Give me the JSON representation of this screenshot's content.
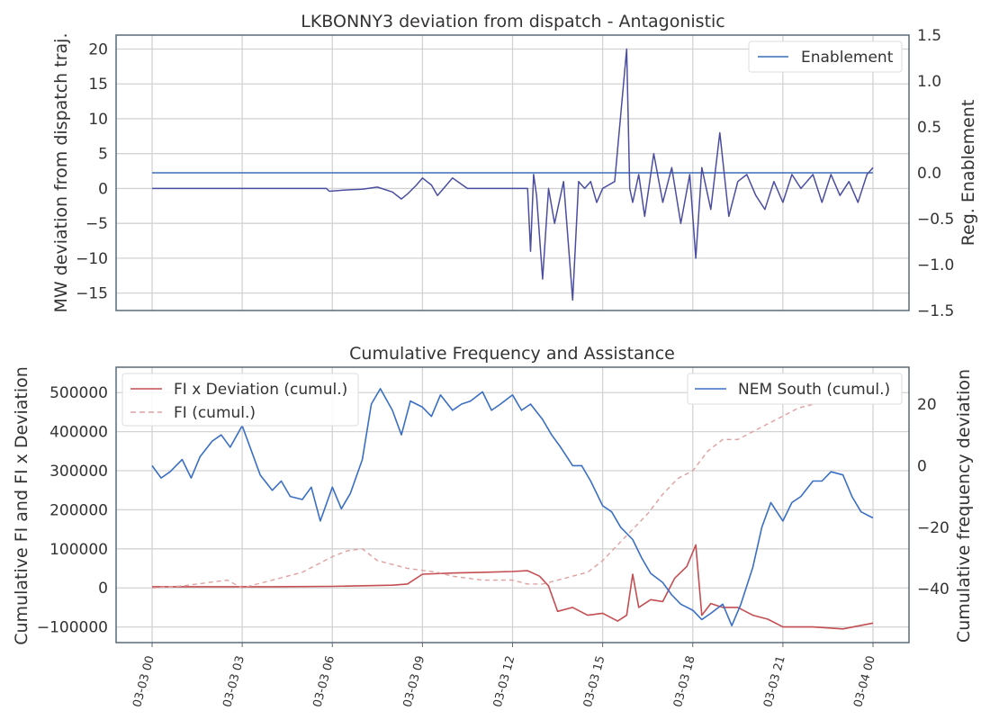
{
  "chart_data": [
    {
      "type": "line",
      "title": "LKBONNY3 deviation from dispatch - Antagonistic",
      "ylabel": "MW deviation from dispatch traj.",
      "y2label": "Reg. Enablement",
      "ylim": [
        -17.5,
        22
      ],
      "y2lim": [
        -1.5,
        1.5
      ],
      "yticks": [
        -15,
        -10,
        -5,
        0,
        5,
        10,
        15,
        20
      ],
      "y2ticks": [
        -1.5,
        -1.0,
        -0.5,
        0.0,
        0.5,
        1.0,
        1.5
      ],
      "ytick_labels": [
        "−15",
        "−10",
        "−5",
        "0",
        "5",
        "10",
        "15",
        "20"
      ],
      "y2tick_labels": [
        "−1.5",
        "−1.0",
        "−0.5",
        "0.0",
        "0.5",
        "1.0",
        "1.5"
      ],
      "legend": {
        "position": "top-right",
        "entries": [
          "Enablement"
        ]
      },
      "grid": true,
      "colors": {
        "deviation": "#4b4ea0",
        "enablement": "#3a6fb5"
      },
      "series": [
        {
          "name": "Enablement",
          "axis": "right",
          "x_hours": [
            0,
            24
          ],
          "values": [
            0.0,
            0.0
          ]
        },
        {
          "axis": "left",
          "x_hours": [
            0,
            1,
            2,
            3,
            4,
            5,
            5.8,
            5.9,
            6.5,
            7,
            7.5,
            8,
            8.3,
            8.5,
            8.8,
            9,
            9.3,
            9.5,
            10,
            10.5,
            10.8,
            11,
            11.5,
            12,
            12.5,
            12.6,
            12.7,
            12.8,
            13,
            13.2,
            13.4,
            13.7,
            14,
            14.2,
            14.4,
            14.6,
            14.8,
            15,
            15.4,
            15.8,
            15.9,
            16.0,
            16.2,
            16.4,
            16.7,
            17,
            17.3,
            17.6,
            17.9,
            18.1,
            18.3,
            18.6,
            18.9,
            19.2,
            19.5,
            19.8,
            20.1,
            20.4,
            20.7,
            21,
            21.3,
            21.6,
            22,
            22.3,
            22.6,
            22.9,
            23.2,
            23.5,
            23.8,
            24
          ],
          "values": [
            0,
            0,
            0,
            0,
            0,
            0,
            0,
            -0.4,
            -0.2,
            -0.1,
            0.2,
            -0.5,
            -1.5,
            -0.8,
            0.5,
            1.5,
            0.5,
            -1.0,
            1.5,
            0,
            0,
            0,
            0,
            0,
            0,
            -9,
            2,
            -1,
            -13,
            0,
            -5,
            1,
            -16,
            1,
            0,
            1,
            -2,
            0,
            1,
            20,
            0,
            -2,
            2,
            -4,
            5,
            -2,
            3,
            -5,
            2,
            -10,
            3,
            -3,
            8,
            -4,
            1,
            2,
            -1,
            -3,
            1,
            -2,
            2,
            0,
            2,
            -2,
            2,
            -1,
            1,
            -2,
            2,
            3
          ]
        }
      ]
    },
    {
      "type": "line",
      "title": "Cumulative Frequency and Assistance",
      "ylabel": "Cumulative FI and FI x Deviation",
      "y2label": "Cumulative frequency deviation",
      "ylim": [
        -140000,
        565000
      ],
      "y2lim": [
        -57.5,
        32
      ],
      "yticks": [
        -100000,
        0,
        100000,
        200000,
        300000,
        400000,
        500000
      ],
      "y2ticks": [
        -40,
        -20,
        0,
        20
      ],
      "ytick_labels": [
        "−100000",
        "0",
        "100000",
        "200000",
        "300000",
        "400000",
        "500000"
      ],
      "y2tick_labels": [
        "−40",
        "−20",
        "0",
        "20"
      ],
      "xticks_hours": [
        0,
        3,
        6,
        9,
        12,
        15,
        18,
        21,
        24
      ],
      "xtick_labels": [
        "03-03 00",
        "03-03 03",
        "03-03 06",
        "03-03 09",
        "03-03 12",
        "03-03 15",
        "03-03 18",
        "03-03 21",
        "03-04 00"
      ],
      "legend": [
        {
          "position": "top-left",
          "entries": [
            "FI x Deviation (cumul.)",
            "FI (cumul.)"
          ]
        },
        {
          "position": "top-right",
          "entries": [
            "NEM South (cumul.)"
          ]
        }
      ],
      "grid": true,
      "colors": {
        "fi_dev": "#c44e52",
        "fi": "#e0a0a0",
        "nem_south": "#3a6fc4"
      },
      "series": [
        {
          "name": "FI x Deviation (cumul.)",
          "axis": "left",
          "x_hours": [
            0,
            2,
            4,
            6,
            8,
            8.5,
            9,
            10,
            11,
            12,
            12.5,
            12.9,
            13.2,
            13.5,
            14,
            14.5,
            15,
            15.5,
            15.8,
            16.0,
            16.2,
            16.6,
            17,
            17.4,
            17.8,
            18.1,
            18.3,
            18.6,
            19,
            19.5,
            20,
            20.5,
            21,
            22,
            23,
            24
          ],
          "values": [
            3000,
            3000,
            3000,
            4000,
            7000,
            10000,
            35000,
            38000,
            40000,
            42000,
            44000,
            30000,
            5000,
            -60000,
            -50000,
            -70000,
            -65000,
            -85000,
            -70000,
            35000,
            -50000,
            -30000,
            -35000,
            25000,
            55000,
            110000,
            -70000,
            -40000,
            -50000,
            -50000,
            -70000,
            -80000,
            -100000,
            -100000,
            -105000,
            -90000
          ]
        },
        {
          "name": "FI (cumul.)",
          "axis": "left",
          "x_hours": [
            0,
            1,
            2,
            2.5,
            3,
            4,
            5,
            6,
            6.5,
            7,
            7.5,
            8,
            8.5,
            9,
            9.5,
            10,
            11,
            12,
            12.5,
            13,
            13.5,
            14,
            14.5,
            15,
            15.5,
            16,
            16.5,
            17,
            17.5,
            18,
            18.5,
            19,
            19.5,
            20,
            20.5,
            21,
            21.5,
            22,
            22.5,
            23,
            23.5
          ],
          "values": [
            0,
            5000,
            15000,
            20000,
            0,
            20000,
            40000,
            80000,
            95000,
            100000,
            70000,
            60000,
            50000,
            45000,
            40000,
            30000,
            20000,
            20000,
            10000,
            10000,
            20000,
            30000,
            40000,
            70000,
            110000,
            150000,
            190000,
            240000,
            280000,
            300000,
            350000,
            380000,
            380000,
            400000,
            420000,
            440000,
            460000,
            470000,
            480000,
            500000,
            530000
          ]
        },
        {
          "name": "NEM South (cumul.)",
          "axis": "right",
          "x_hours": [
            0,
            0.3,
            0.6,
            1,
            1.3,
            1.6,
            2,
            2.3,
            2.6,
            3,
            3.3,
            3.6,
            4,
            4.3,
            4.6,
            5,
            5.3,
            5.6,
            6,
            6.3,
            6.6,
            7,
            7.3,
            7.6,
            8,
            8.3,
            8.6,
            9,
            9.3,
            9.6,
            10,
            10.3,
            10.6,
            11,
            11.3,
            11.6,
            12,
            12.3,
            12.6,
            13,
            13.3,
            13.6,
            14,
            14.3,
            14.6,
            15,
            15.3,
            15.6,
            16,
            16.3,
            16.6,
            17,
            17.3,
            17.6,
            18,
            18.3,
            18.6,
            19,
            19.3,
            19.6,
            20,
            20.3,
            20.6,
            21,
            21.3,
            21.6,
            22,
            22.3,
            22.6,
            23,
            23.3,
            23.6,
            24
          ],
          "values": [
            0,
            -4,
            -2,
            2,
            -4,
            3,
            8,
            10,
            6,
            13,
            5,
            -3,
            -8,
            -5,
            -10,
            -11,
            -7,
            -18,
            -7,
            -14,
            -9,
            2,
            20,
            25,
            18,
            10,
            21,
            19,
            16,
            23,
            18,
            20,
            21,
            24,
            18,
            20,
            23,
            18,
            20,
            15,
            10,
            6,
            0,
            0,
            -5,
            -13,
            -15,
            -20,
            -24,
            -30,
            -35,
            -38,
            -42,
            -45,
            -47,
            -50,
            -48,
            -45,
            -52,
            -45,
            -33,
            -20,
            -12,
            -18,
            -12,
            -10,
            -5,
            -5,
            -2,
            -3,
            -10,
            -15,
            -17
          ]
        }
      ]
    }
  ]
}
